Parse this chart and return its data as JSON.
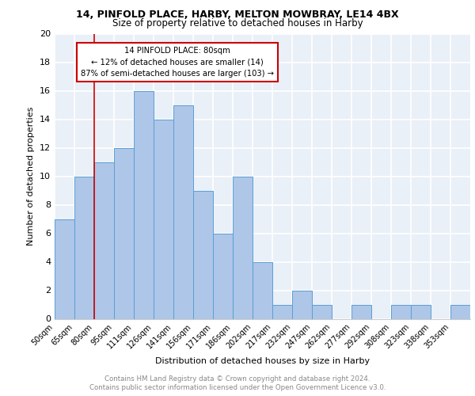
{
  "title1": "14, PINFOLD PLACE, HARBY, MELTON MOWBRAY, LE14 4BX",
  "title2": "Size of property relative to detached houses in Harby",
  "xlabel": "Distribution of detached houses by size in Harby",
  "ylabel": "Number of detached properties",
  "bin_labels": [
    "50sqm",
    "65sqm",
    "80sqm",
    "95sqm",
    "111sqm",
    "126sqm",
    "141sqm",
    "156sqm",
    "171sqm",
    "186sqm",
    "202sqm",
    "217sqm",
    "232sqm",
    "247sqm",
    "262sqm",
    "277sqm",
    "292sqm",
    "308sqm",
    "323sqm",
    "338sqm",
    "353sqm"
  ],
  "counts": [
    7,
    10,
    11,
    12,
    16,
    14,
    15,
    9,
    6,
    10,
    4,
    1,
    2,
    1,
    0,
    1,
    0,
    1,
    1,
    0,
    1
  ],
  "bar_color": "#aec6e8",
  "bar_edge_color": "#5a9fd4",
  "annotation_box_text": "14 PINFOLD PLACE: 80sqm\n← 12% of detached houses are smaller (14)\n87% of semi-detached houses are larger (103) →",
  "annotation_box_color": "#ffffff",
  "annotation_box_edge_color": "#cc0000",
  "vline_color": "#cc0000",
  "vline_index": 2,
  "ylim": [
    0,
    20
  ],
  "yticks": [
    0,
    2,
    4,
    6,
    8,
    10,
    12,
    14,
    16,
    18,
    20
  ],
  "footer1": "Contains HM Land Registry data © Crown copyright and database right 2024.",
  "footer2": "Contains public sector information licensed under the Open Government Licence v3.0.",
  "bg_color": "#eaf0f8",
  "grid_color": "#ffffff"
}
